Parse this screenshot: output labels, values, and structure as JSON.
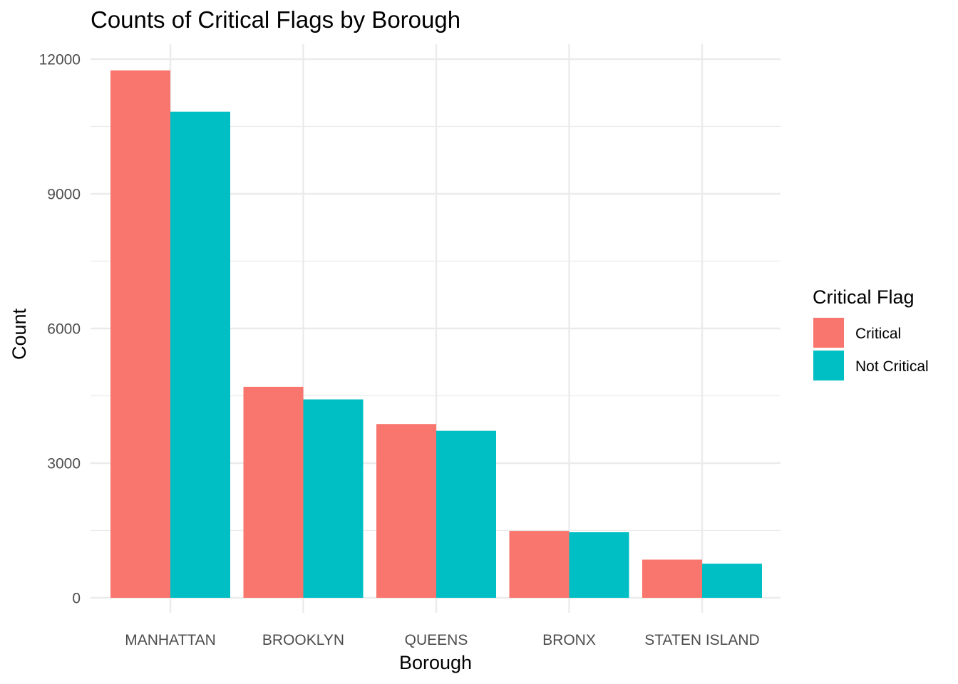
{
  "chart_data": {
    "type": "bar",
    "title": "Counts of Critical Flags by Borough",
    "xlabel": "Borough",
    "ylabel": "Count",
    "categories": [
      "MANHATTAN",
      "BROOKLYN",
      "QUEENS",
      "BRONX",
      "STATEN ISLAND"
    ],
    "series": [
      {
        "name": "Critical",
        "color": "#F8766D",
        "values": [
          11750,
          4700,
          3870,
          1490,
          850
        ]
      },
      {
        "name": "Not Critical",
        "color": "#00BFC4",
        "values": [
          10830,
          4420,
          3720,
          1460,
          760
        ]
      }
    ],
    "ylim": [
      0,
      12000
    ],
    "yticks": [
      0,
      3000,
      6000,
      9000,
      12000
    ],
    "ytick_labels": [
      "0",
      "3000",
      "6000",
      "9000",
      "12000"
    ],
    "grid": true,
    "legend": {
      "title": "Critical Flag",
      "position": "right"
    }
  }
}
